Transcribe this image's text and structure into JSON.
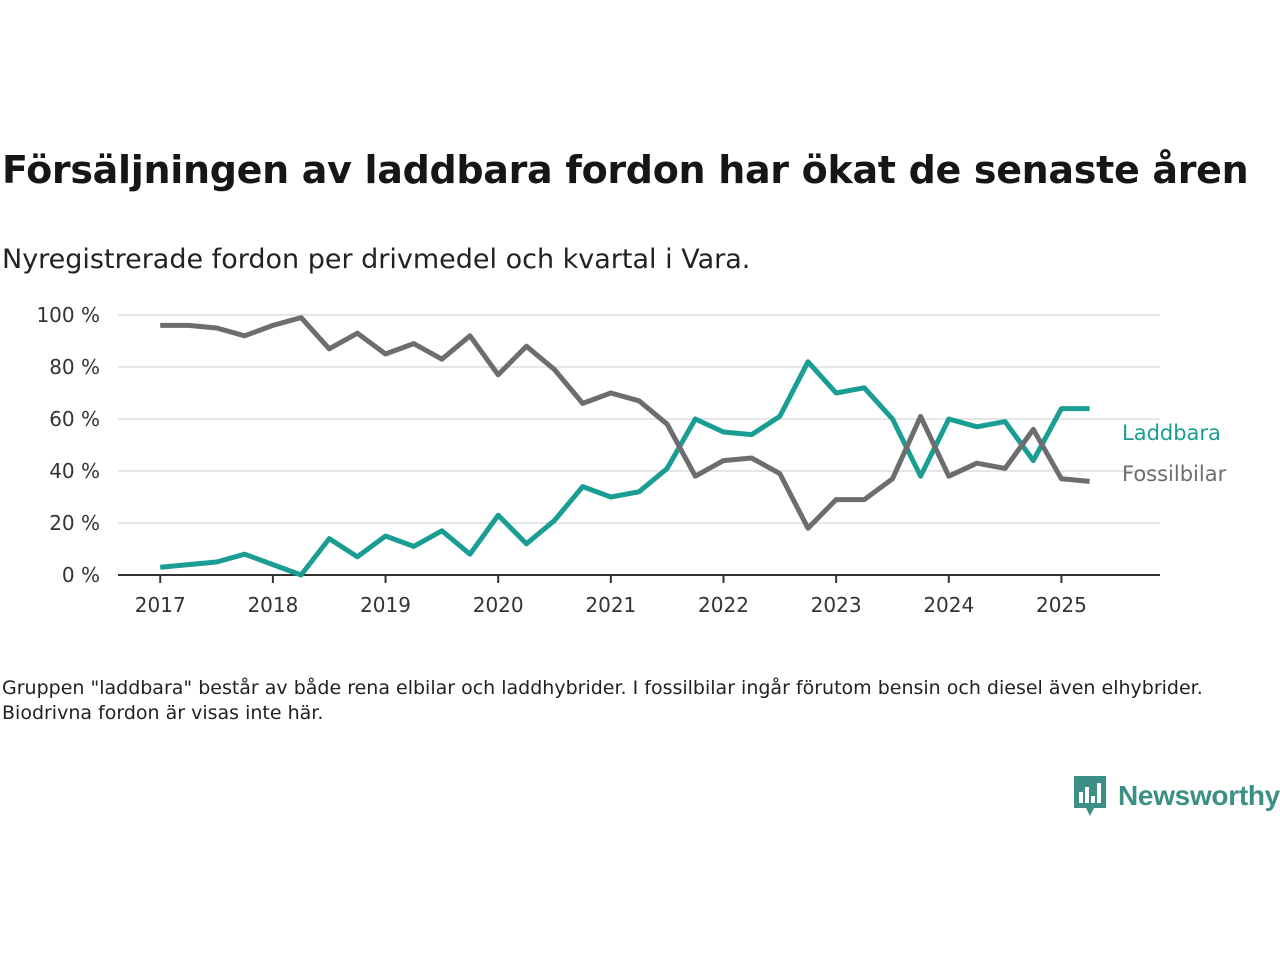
{
  "title": "Försäljningen av laddbara fordon har ökat de senaste åren",
  "subtitle": "Nyregistrerade fordon per drivmedel och kvartal i Vara.",
  "note": "Gruppen \"laddbara\" består av både rena elbilar och laddhybrider. I fossilbilar ingår förutom bensin och diesel även elhybrider. Biodrivna fordon är visas inte här.",
  "brand": {
    "name": "Newsworthy",
    "logo_icon": "bar-chart-speech-bubble-icon"
  },
  "chart_data": {
    "type": "line",
    "title": "Försäljningen av laddbara fordon har ökat de senaste åren",
    "subtitle": "Nyregistrerade fordon per drivmedel och kvartal i Vara.",
    "xlabel": "",
    "ylabel": "",
    "x_ticks": [
      "2017",
      "2018",
      "2019",
      "2020",
      "2021",
      "2022",
      "2023",
      "2024",
      "2025"
    ],
    "y_ticks": [
      "0 %",
      "20 %",
      "40 %",
      "60 %",
      "80 %",
      "100 %"
    ],
    "ylim": [
      0,
      100
    ],
    "xlim": [
      "2016-Q3",
      "2025-Q4"
    ],
    "grid": "horizontal",
    "legend": "inline-right",
    "x": [
      "2017-Q1",
      "2017-Q2",
      "2017-Q3",
      "2017-Q4",
      "2018-Q1",
      "2018-Q2",
      "2018-Q3",
      "2018-Q4",
      "2019-Q1",
      "2019-Q2",
      "2019-Q3",
      "2019-Q4",
      "2020-Q1",
      "2020-Q2",
      "2020-Q3",
      "2020-Q4",
      "2021-Q1",
      "2021-Q2",
      "2021-Q3",
      "2021-Q4",
      "2022-Q1",
      "2022-Q2",
      "2022-Q3",
      "2022-Q4",
      "2023-Q1",
      "2023-Q2",
      "2023-Q3",
      "2023-Q4",
      "2024-Q1",
      "2024-Q2",
      "2024-Q3",
      "2024-Q4",
      "2025-Q1",
      "2025-Q2"
    ],
    "series": [
      {
        "name": "Laddbara",
        "color": "#1a9e93",
        "values": [
          3,
          4,
          5,
          8,
          4,
          0,
          14,
          7,
          15,
          11,
          17,
          8,
          23,
          12,
          21,
          34,
          30,
          32,
          41,
          60,
          55,
          54,
          61,
          82,
          70,
          72,
          60,
          38,
          60,
          57,
          59,
          44,
          64,
          64
        ]
      },
      {
        "name": "Fossilbilar",
        "color": "#6d6d70",
        "values": [
          96,
          96,
          95,
          92,
          96,
          99,
          87,
          93,
          85,
          89,
          83,
          92,
          77,
          88,
          79,
          66,
          70,
          67,
          58,
          38,
          44,
          45,
          39,
          18,
          29,
          29,
          37,
          61,
          38,
          43,
          41,
          56,
          37,
          36
        ]
      }
    ]
  },
  "colors": {
    "axis": "#333333",
    "grid": "#dddddd",
    "brand": "#3b8f87"
  }
}
